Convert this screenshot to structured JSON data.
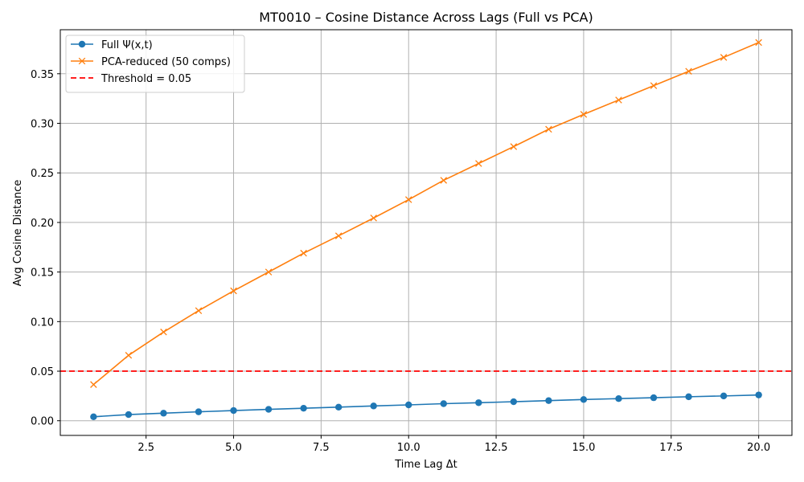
{
  "chart_data": {
    "type": "line",
    "title": "MT0010 – Cosine Distance Across Lags (Full vs PCA)",
    "xlabel": "Time Lag Δt",
    "ylabel": "Avg Cosine Distance",
    "xlim": [
      0.05,
      20.95
    ],
    "ylim": [
      -0.0148,
      0.3944
    ],
    "xticks": [
      2.5,
      5.0,
      7.5,
      10.0,
      12.5,
      15.0,
      17.5,
      20.0
    ],
    "xtick_labels": [
      "2.5",
      "5.0",
      "7.5",
      "10.0",
      "12.5",
      "15.0",
      "17.5",
      "20.0"
    ],
    "yticks": [
      0.0,
      0.05,
      0.1,
      0.15,
      0.2,
      0.25,
      0.3,
      0.35
    ],
    "ytick_labels": [
      "0.00",
      "0.05",
      "0.10",
      "0.15",
      "0.20",
      "0.25",
      "0.30",
      "0.35"
    ],
    "grid": true,
    "legend_position": "top-left",
    "x": [
      1,
      2,
      3,
      4,
      5,
      6,
      7,
      8,
      9,
      10,
      11,
      12,
      13,
      14,
      15,
      16,
      17,
      18,
      19,
      20
    ],
    "series": [
      {
        "name": "Full Ψ(x,t)",
        "color": "#1f77b4",
        "marker": "circle",
        "values": [
          0.004,
          0.0062,
          0.0076,
          0.009,
          0.0103,
          0.0115,
          0.0126,
          0.0137,
          0.0149,
          0.016,
          0.0172,
          0.0182,
          0.0192,
          0.0203,
          0.0214,
          0.0223,
          0.0232,
          0.0242,
          0.025,
          0.026
        ]
      },
      {
        "name": "PCA-reduced (50 comps)",
        "color": "#ff7f0e",
        "marker": "x",
        "values": [
          0.0365,
          0.066,
          0.0895,
          0.111,
          0.131,
          0.15,
          0.169,
          0.1865,
          0.2045,
          0.223,
          0.2425,
          0.2595,
          0.2765,
          0.294,
          0.309,
          0.3235,
          0.338,
          0.3525,
          0.3665,
          0.3815
        ]
      }
    ],
    "reference_lines": [
      {
        "name": "Threshold = 0.05",
        "orientation": "horizontal",
        "value": 0.05,
        "color": "#ff0000",
        "style": "dashed"
      }
    ]
  }
}
